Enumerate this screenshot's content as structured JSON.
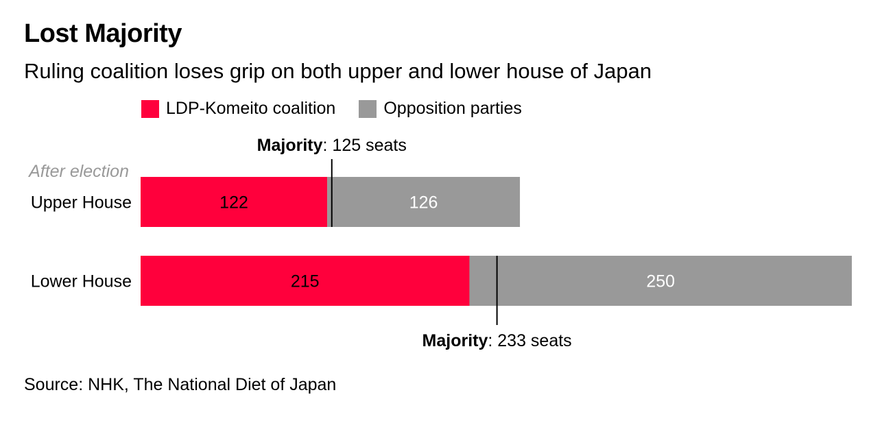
{
  "title": "Lost Majority",
  "subtitle": "Ruling coalition loses grip on both upper and lower house of Japan",
  "source": "Source: NHK, The National Diet of Japan",
  "chart_data": {
    "type": "bar",
    "orientation": "horizontal",
    "stacked": true,
    "title": "Lost Majority",
    "subtitle": "Ruling coalition loses grip on both upper and lower house of Japan",
    "categories": [
      "Upper House",
      "Lower House"
    ],
    "category_note": "After election",
    "series": [
      {
        "name": "LDP-Komeito coalition",
        "color": "#ff003c",
        "values": [
          122,
          215
        ]
      },
      {
        "name": "Opposition parties",
        "color": "#999999",
        "values": [
          126,
          250
        ]
      }
    ],
    "majority": [
      {
        "label": "Majority",
        "value_text": ": 125 seats",
        "value": 125
      },
      {
        "label": "Majority",
        "value_text": ": 233 seats",
        "value": 233
      }
    ],
    "xlabel": "",
    "ylabel": "",
    "xlim": [
      0,
      465
    ],
    "grid": false,
    "legend": "top"
  }
}
